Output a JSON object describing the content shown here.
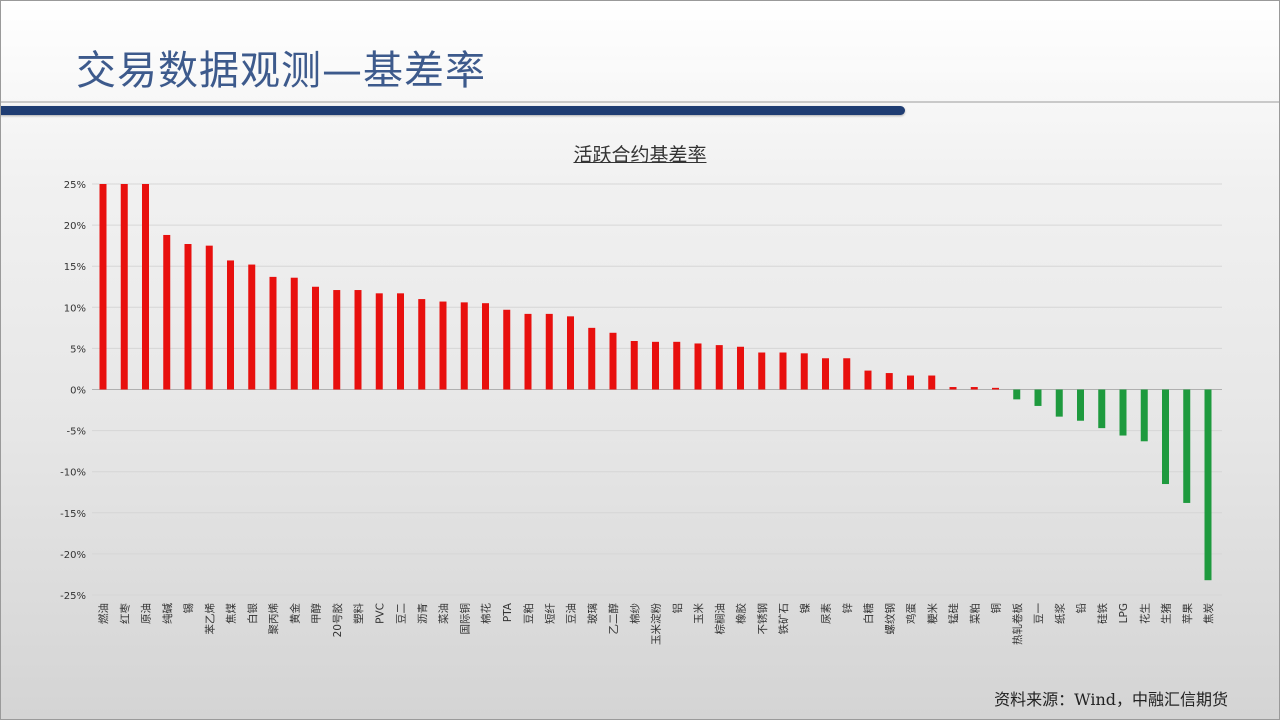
{
  "header": {
    "title": "交易数据观测—基差率"
  },
  "source": "资料来源：Wind，中融汇信期货",
  "colors": {
    "positive": "#e8100e",
    "negative": "#1e9a3e",
    "title": "#3d5a8c",
    "accent_bar": "#1f3d73"
  },
  "chart_data": {
    "type": "bar",
    "title": "活跃合约基差率",
    "xlabel": "",
    "ylabel": "",
    "ylim": [
      -25,
      25
    ],
    "yticks": [
      "25%",
      "20%",
      "15%",
      "10%",
      "5%",
      "0%",
      "-5%",
      "-10%",
      "-15%",
      "-20%",
      "-25%"
    ],
    "grid": true,
    "categories": [
      "燃油",
      "红枣",
      "原油",
      "纯碱",
      "锡",
      "苯乙烯",
      "焦煤",
      "白银",
      "聚丙烯",
      "黄金",
      "甲醇",
      "20号胶",
      "塑料",
      "PVC",
      "豆二",
      "沥青",
      "菜油",
      "国际铜",
      "棉花",
      "PTA",
      "豆粕",
      "短纤",
      "豆油",
      "玻璃",
      "乙二醇",
      "棉纱",
      "玉米淀粉",
      "铝",
      "玉米",
      "棕榈油",
      "橡胶",
      "不锈钢",
      "铁矿石",
      "镍",
      "尿素",
      "锌",
      "白糖",
      "螺纹钢",
      "鸡蛋",
      "粳米",
      "锰硅",
      "菜粕",
      "铜",
      "热轧卷板",
      "豆一",
      "纸浆",
      "铅",
      "硅铁",
      "LPG",
      "花生",
      "生猪",
      "苹果",
      "焦炭"
    ],
    "values": [
      25,
      25,
      25,
      18.8,
      17.7,
      17.5,
      15.7,
      15.2,
      13.7,
      13.6,
      12.5,
      12.1,
      12.1,
      11.7,
      11.7,
      11.0,
      10.7,
      10.6,
      10.5,
      9.7,
      9.2,
      9.2,
      8.9,
      7.5,
      6.9,
      5.9,
      5.8,
      5.8,
      5.6,
      5.4,
      5.2,
      4.5,
      4.5,
      4.4,
      3.8,
      3.8,
      2.3,
      2.0,
      1.7,
      1.7,
      0.3,
      0.3,
      0.2,
      -1.2,
      -2.0,
      -3.3,
      -3.8,
      -4.7,
      -5.6,
      -6.3,
      -11.5,
      -13.8,
      -23.2
    ]
  }
}
